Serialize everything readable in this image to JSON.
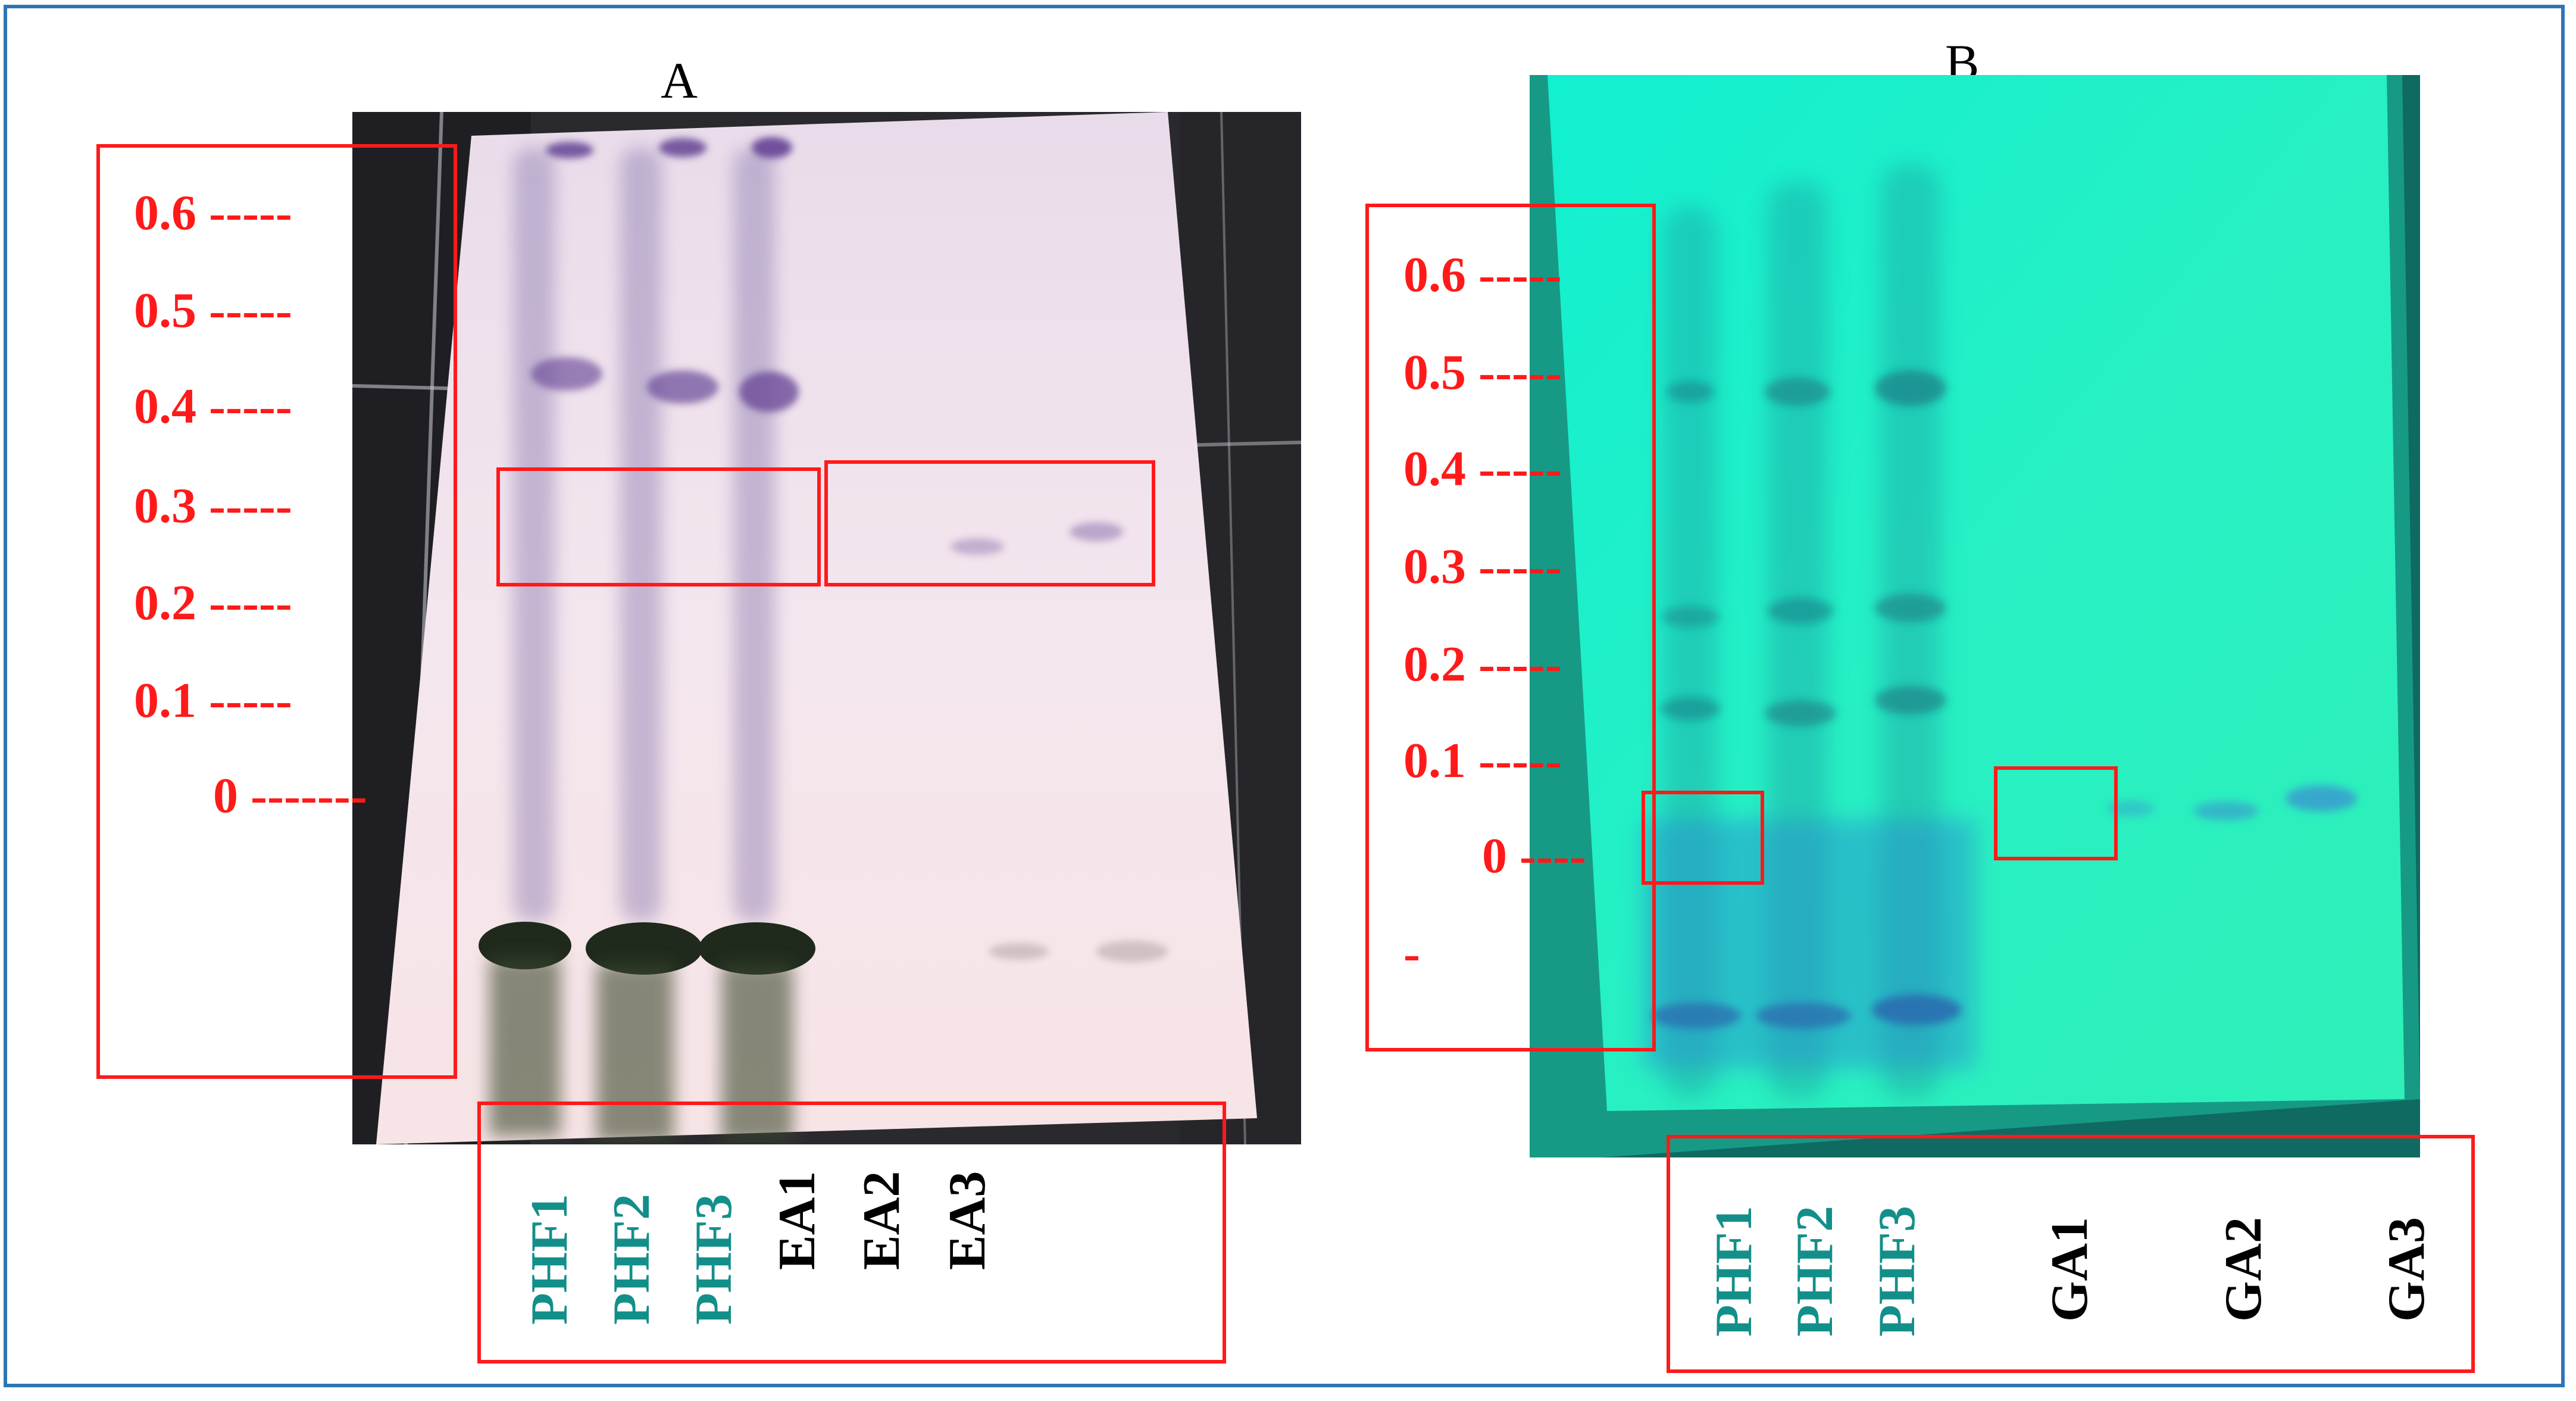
{
  "panels": {
    "a": {
      "letter": "A",
      "rf_labels": [
        "0.6 -----",
        "0.5 -----",
        "0.4 -----",
        "0.3 -----",
        "0.2 -----",
        "0.1 -----",
        "0 -------"
      ],
      "lanes": [
        "PHF1",
        "PHF2",
        "PHF3",
        "EA1",
        "EA2",
        "EA3"
      ]
    },
    "b": {
      "letter": "B",
      "rf_labels": [
        "0.6 -----",
        "0.5 -----",
        "0.4 -----",
        "0.3 -----",
        "0.2 -----",
        "0.1 -----",
        "0 ----",
        "-"
      ],
      "lanes": [
        "PHF1",
        "PHF2",
        "PHF3",
        "GA1",
        "GA2",
        "GA3"
      ]
    }
  },
  "colors": {
    "frame": "#2e75b6",
    "annotation_red": "#ff1a1a",
    "lane_teal": "#138f8a",
    "lane_black": "#000000",
    "plate_a": "#f3e6ee",
    "plate_b": "#27f3c6"
  }
}
